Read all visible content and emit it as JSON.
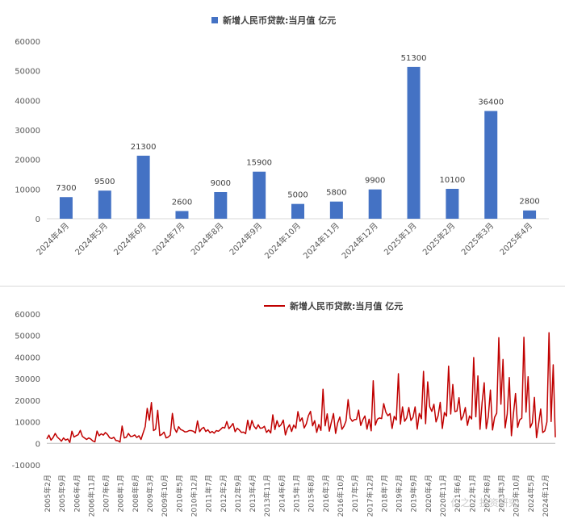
{
  "chart_data": [
    {
      "type": "bar",
      "title": "",
      "legend": {
        "label": "新增人民币贷款:当月值 亿元",
        "placement": "top"
      },
      "categories": [
        "2024年4月",
        "2024年5月",
        "2024年6月",
        "2024年7月",
        "2024年8月",
        "2024年9月",
        "2024年10月",
        "2024年11月",
        "2024年12月",
        "2025年1月",
        "2025年2月",
        "2025年3月",
        "2025年4月"
      ],
      "series": [
        {
          "name": "新增人民币贷款:当月值 亿元",
          "color": "#4472c4",
          "values": [
            7300,
            9500,
            21300,
            2600,
            9000,
            15900,
            5000,
            5800,
            9900,
            51300,
            10100,
            36400,
            2800
          ]
        }
      ],
      "data_labels": [
        "7300",
        "9500",
        "21300",
        "2600",
        "9000",
        "15900",
        "5000",
        "5800",
        "9900",
        "51300",
        "10100",
        "36400",
        "2800"
      ],
      "ylim": [
        0,
        60000
      ],
      "yticks": [
        "0",
        "10000",
        "20000",
        "30000",
        "40000",
        "50000",
        "60000"
      ],
      "xlabel": "",
      "ylabel": "",
      "grid": false
    },
    {
      "type": "line",
      "title": "",
      "legend": {
        "label": "新增人民币贷款:当月值 亿元",
        "placement": "top"
      },
      "x_start": "2005-02",
      "x_end": "2025-04",
      "xtick_labels": [
        "2005年2月",
        "2005年9月",
        "2006年4月",
        "2006年11月",
        "2007年6月",
        "2008年1月",
        "2008年8月",
        "2009年3月",
        "2009年10月",
        "2010年5月",
        "2010年12月",
        "2011年7月",
        "2012年2月",
        "2012年9月",
        "2013年4月",
        "2013年11月",
        "2014年6月",
        "2015年1月",
        "2015年8月",
        "2016年3月",
        "2016年10月",
        "2017年5月",
        "2017年12月",
        "2018年7月",
        "2019年2月",
        "2019年9月",
        "2020年4月",
        "2020年11月",
        "2021年6月",
        "2022年1月",
        "2022年8月",
        "2023年3月",
        "2023年10月",
        "2024年5月",
        "2024年12月"
      ],
      "ylim": [
        -10000,
        60000
      ],
      "yticks": [
        "-10000",
        "0",
        "10000",
        "20000",
        "30000",
        "40000",
        "50000",
        "60000"
      ],
      "series": [
        {
          "name": "新增人民币贷款:当月值 亿元",
          "color": "#c00000",
          "values": [
            2000,
            3800,
            1500,
            2700,
            4600,
            2900,
            2000,
            1000,
            2500,
            1500,
            2000,
            400,
            5600,
            2900,
            3500,
            4000,
            6000,
            3200,
            2500,
            1800,
            2500,
            2000,
            1100,
            700,
            5700,
            3500,
            4400,
            3800,
            5000,
            4100,
            2600,
            2200,
            2800,
            1300,
            1200,
            600,
            8000,
            2500,
            2800,
            4600,
            3200,
            3300,
            3900,
            2700,
            3500,
            1800,
            4800,
            7700,
            16200,
            10700,
            18900,
            5900,
            6600,
            15300,
            3600,
            4100,
            5200,
            2500,
            2900,
            3800,
            13900,
            7000,
            5100,
            7700,
            6400,
            6000,
            5300,
            5400,
            5900,
            5900,
            5600,
            4800,
            10400,
            5400,
            6800,
            7400,
            5500,
            6300,
            4900,
            5500,
            4700,
            5900,
            5600,
            6400,
            7400,
            7100,
            10100,
            6800,
            7900,
            9200,
            5400,
            7000,
            6200,
            5100,
            5200,
            4500,
            10700,
            6200,
            10600,
            7900,
            6700,
            8600,
            7000,
            7100,
            7900,
            5100,
            6200,
            4800,
            13200,
            6400,
            10500,
            7700,
            8700,
            10800,
            3900,
            7000,
            8600,
            5500,
            8500,
            7000,
            14700,
            10200,
            11800,
            7100,
            9000,
            12800,
            14800,
            8100,
            10500,
            5100,
            8700,
            6000,
            25100,
            8100,
            13700,
            5600,
            9900,
            13800,
            4600,
            9500,
            12200,
            6500,
            7900,
            10400,
            20300,
            11700,
            10200,
            11000,
            11100,
            15400,
            8300,
            10900,
            12700,
            6600,
            11200,
            5800,
            29000,
            8400,
            11200,
            11800,
            11500,
            18400,
            14500,
            12800,
            13800,
            6900,
            12500,
            10800,
            32300,
            8900,
            16900,
            10200,
            11800,
            16600,
            10600,
            12100,
            16900,
            6600,
            13900,
            11400,
            33400,
            9100,
            28500,
            17000,
            14800,
            18100,
            9900,
            12800,
            19000,
            6900,
            14300,
            12600,
            35800,
            13600,
            27300,
            14700,
            15000,
            21200,
            10800,
            12700,
            16600,
            8300,
            12700,
            11300,
            39800,
            12300,
            31300,
            6500,
            18900,
            28100,
            6800,
            12500,
            24700,
            6200,
            12100,
            14000,
            49000,
            18100,
            38900,
            7200,
            13600,
            30500,
            3500,
            13600,
            23100,
            7400,
            10900,
            11700,
            49200,
            14500,
            30900,
            7300,
            9500,
            21300,
            2600,
            9000,
            15900,
            5000,
            5800,
            9900,
            51300,
            10100,
            36400,
            2800
          ]
        }
      ],
      "watermark": "仁之 · 投资研究"
    }
  ]
}
